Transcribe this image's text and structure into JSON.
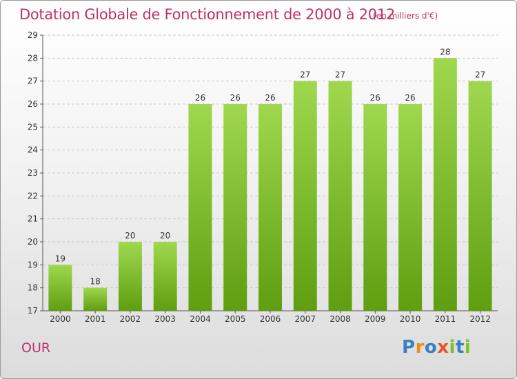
{
  "chart_data": {
    "type": "bar",
    "title": "Dotation Globale de Fonctionnement de 2000 à 2012",
    "unit_label": "(en milliers d'€)",
    "categories": [
      "2000",
      "2001",
      "2002",
      "2003",
      "2004",
      "2005",
      "2006",
      "2007",
      "2008",
      "2009",
      "2010",
      "2011",
      "2012"
    ],
    "values": [
      19,
      18,
      20,
      20,
      26,
      26,
      26,
      27,
      27,
      26,
      26,
      28,
      27
    ],
    "ylim": [
      17,
      29
    ],
    "yticks": [
      17,
      18,
      19,
      20,
      21,
      22,
      23,
      24,
      25,
      26,
      27,
      28,
      29
    ],
    "grid": "horizontal-dashed",
    "bar_color": "#7cc224"
  },
  "footer": {
    "commune": "OUR",
    "logo_text": "Proxiti",
    "logo_colors": [
      "#3a7fc4",
      "#f08a1c",
      "#3a7fc4",
      "#e8542a",
      "#7cc224",
      "#3a7fc4",
      "#7cc224"
    ]
  }
}
